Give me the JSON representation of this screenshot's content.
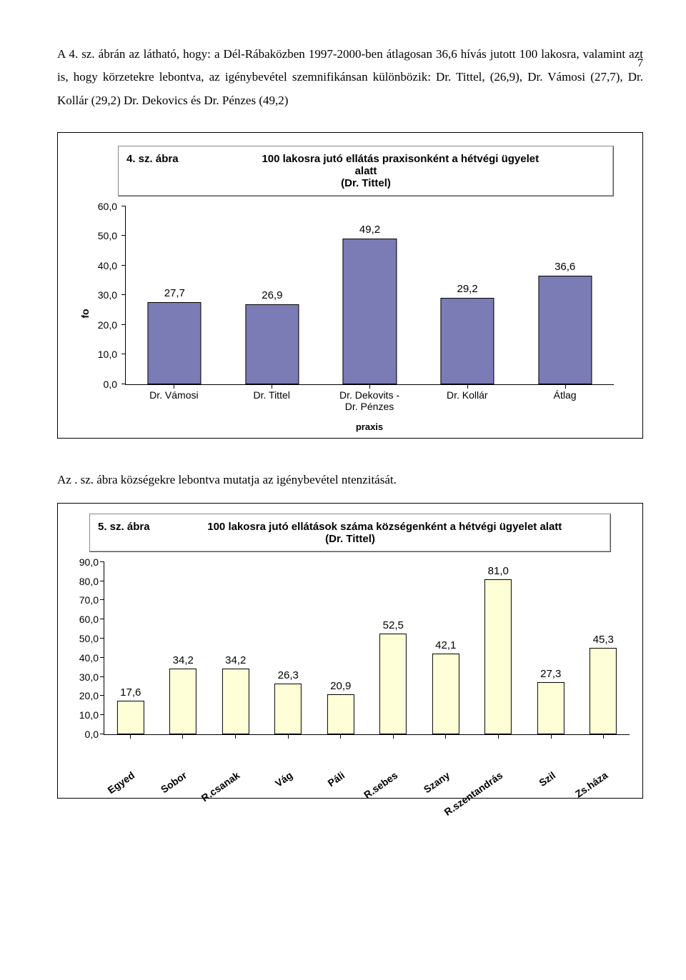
{
  "page_number": "7",
  "paragraph1": "A 4. sz. ábrán az látható, hogy: a Dél-Rábaközben 1997-2000-ben átlagosan 36,6 hívás jutott 100 lakosra, valamint azt is, hogy körzetekre lebontva, az igénybevétel szemnifikánsan különbözik: Dr. Tittel, (26,9), Dr. Vámosi (27,7), Dr. Kollár (29,2) Dr. Dekovics és  Dr. Pénzes (49,2)",
  "chart1": {
    "tag": "4. sz. ábra",
    "title_line1": "100 lakosra jutó ellátás praxisonként a hétvégi ügyelet",
    "title_line2": "alatt",
    "title_line3": "(Dr. Tittel)",
    "ylabel": "fo",
    "xlabel": "praxis",
    "ymax": 60,
    "ytick_step": 10,
    "ytick_labels": [
      "0,0",
      "10,0",
      "20,0",
      "30,0",
      "40,0",
      "50,0",
      "60,0"
    ],
    "bar_width_pct": 55,
    "bar_fill": "#7b7bb5",
    "bar_border": "#000000",
    "bg": "#ffffff",
    "font": "Arial",
    "items": [
      {
        "cat": "Dr. Vámosi",
        "val": 27.7,
        "label": "27,7"
      },
      {
        "cat": "Dr. Tittel",
        "val": 26.9,
        "label": "26,9"
      },
      {
        "cat": "Dr. Dekovits -\nDr. Pénzes",
        "val": 49.2,
        "label": "49,2"
      },
      {
        "cat": "Dr. Kollár",
        "val": 29.2,
        "label": "29,2"
      },
      {
        "cat": "Átlag",
        "val": 36.6,
        "label": "36,6"
      }
    ]
  },
  "paragraph2": "Az . sz. ábra  községekre lebontva mutatja az igénybevétel ntenzitását.",
  "chart2": {
    "tag": "5. sz. ábra",
    "title_line1": "100 lakosra jutó ellátások száma községenként a hétvégi ügyelet alatt",
    "title_line2": "(Dr. Tittel)",
    "ymax": 90,
    "ytick_step": 10,
    "ytick_labels": [
      "0,0",
      "10,0",
      "20,0",
      "30,0",
      "40,0",
      "50,0",
      "60,0",
      "70,0",
      "80,0",
      "90,0"
    ],
    "bar_width_pct": 52,
    "bar_fill": "#ffffd7",
    "bar_border": "#000000",
    "bg": "#ffffff",
    "font": "Arial",
    "items": [
      {
        "cat": "Egyed",
        "val": 17.6,
        "label": "17,6"
      },
      {
        "cat": "Sobor",
        "val": 34.2,
        "label": "34,2"
      },
      {
        "cat": "R.csanak",
        "val": 34.2,
        "label": "34,2"
      },
      {
        "cat": "Vág",
        "val": 26.3,
        "label": "26,3"
      },
      {
        "cat": "Páli",
        "val": 20.9,
        "label": "20,9"
      },
      {
        "cat": "R.sebes",
        "val": 52.5,
        "label": "52,5"
      },
      {
        "cat": "Szany",
        "val": 42.1,
        "label": "42,1"
      },
      {
        "cat": "R.szentandrás",
        "val": 81.0,
        "label": "81,0"
      },
      {
        "cat": "Szil",
        "val": 27.3,
        "label": "27,3"
      },
      {
        "cat": "Zs.háza",
        "val": 45.3,
        "label": "45,3"
      }
    ]
  }
}
